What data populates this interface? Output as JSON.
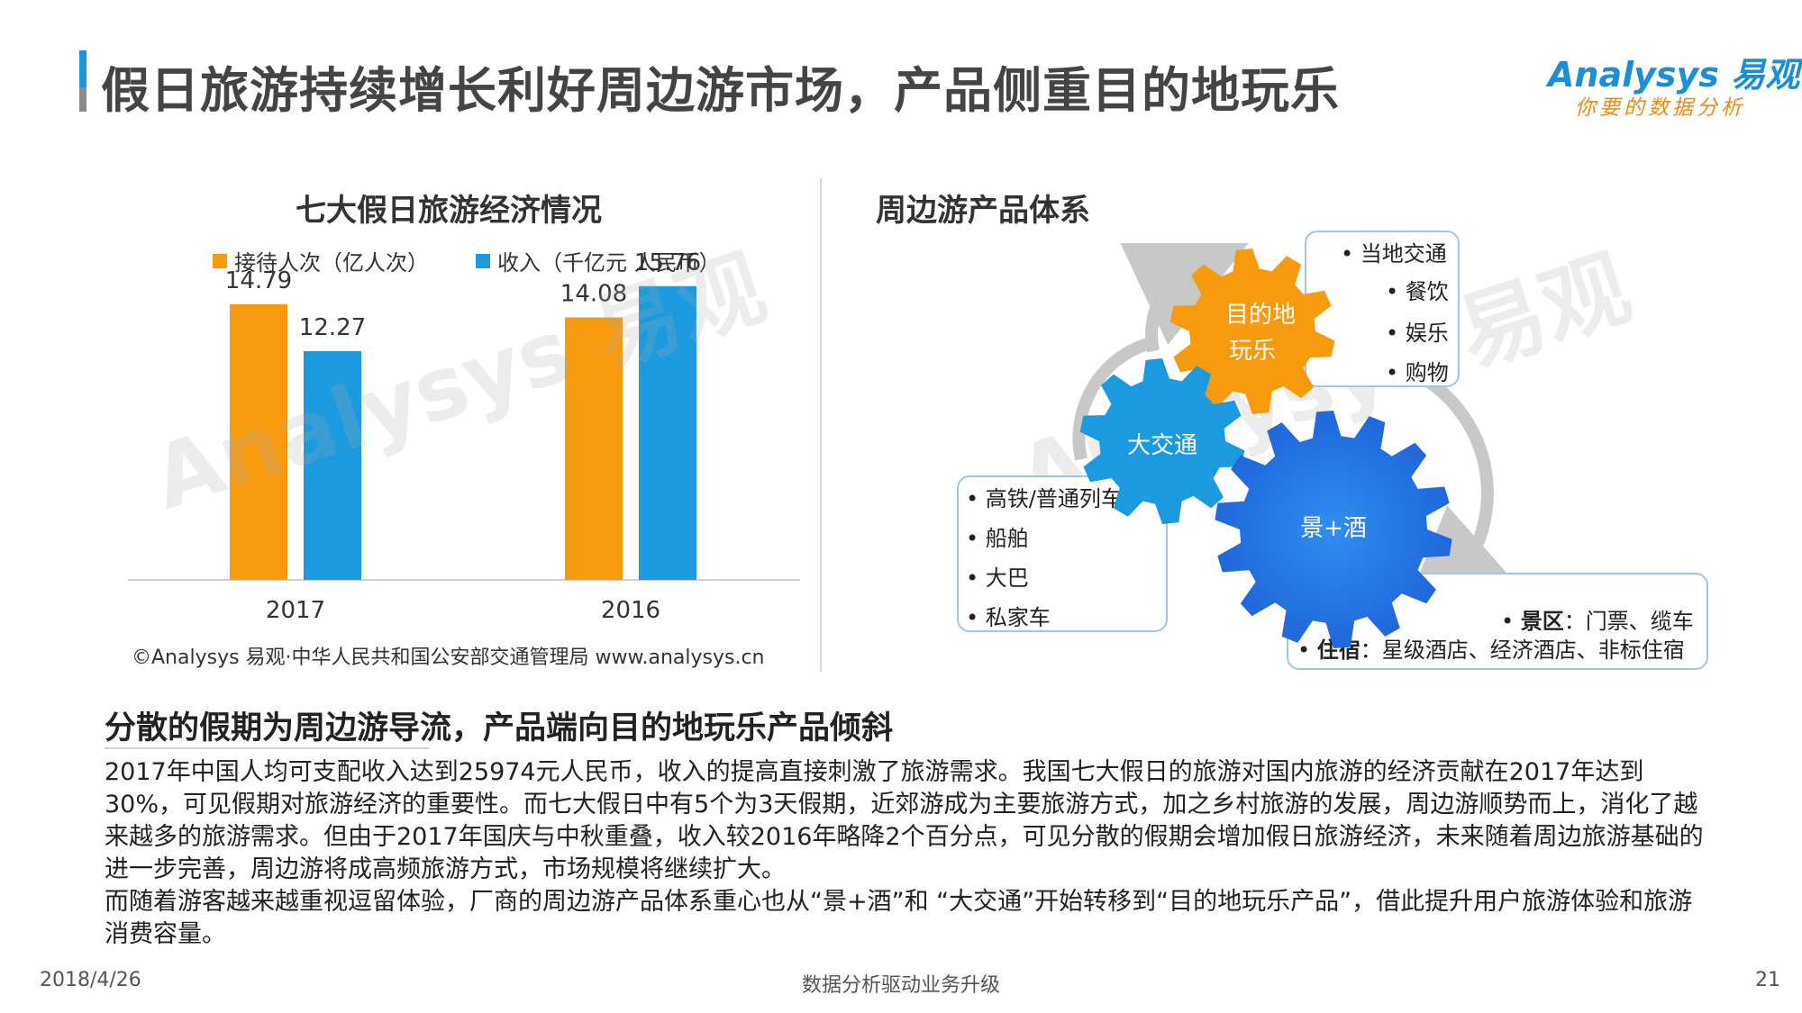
{
  "header": {
    "title": "假日旅游持续增长利好周边游市场，产品侧重目的地玩乐",
    "logo_en": "Analysys 易观",
    "logo_sub": "你要的数据分析"
  },
  "chart_title": "七大假日旅游经济情况",
  "chart_data": {
    "type": "bar",
    "categories": [
      "2017",
      "2016"
    ],
    "series": [
      {
        "name": "接待人次（亿人次）",
        "color": "#f79a0e",
        "values": [
          14.79,
          14.08
        ]
      },
      {
        "name": "收入（千亿元 人民币）",
        "color": "#1b9ae0",
        "values": [
          12.27,
          15.76
        ]
      }
    ],
    "ylim": [
      0,
      20
    ],
    "grid": false,
    "legend": "top"
  },
  "chart_source": "©Analysys 易观·中华人民共和国公安部交通管理局    www.analysys.cn",
  "diagram": {
    "title": "周边游产品体系",
    "gear_orange": "目的地\n玩乐",
    "gear_orange_line1": "目的地",
    "gear_orange_line2": "玩乐",
    "gear_cyan": "大交通",
    "gear_blue": "景+酒",
    "orange_items": [
      "• 当地交通",
      "• 餐饮",
      "• 娱乐",
      "• 购物"
    ],
    "transport_items": [
      "• 高铁/普通列车",
      "• 船舶",
      "• 大巴",
      "• 私家车"
    ],
    "scenic": {
      "bullet": "•",
      "label1": "景区",
      "text1": "：门票、缆车",
      "label2": "住宿",
      "text2": "：星级酒店、经济酒店、非标住宿"
    },
    "colors": {
      "orange": "#f79a0e",
      "cyan": "#1b9ae0",
      "blue": "#1c5fd6"
    }
  },
  "summary": {
    "heading": "分散的假期为周边游导流，产品端向目的地玩乐产品倾斜",
    "paragraph1": "2017年中国人均可支配收入达到25974元人民币，收入的提高直接刺激了旅游需求。我国七大假日的旅游对国内旅游的经济贡献在2017年达到30%，可见假期对旅游经济的重要性。而七大假日中有5个为3天假期，近郊游成为主要旅游方式，加之乡村旅游的发展，周边游顺势而上，消化了越来越多的旅游需求。但由于2017年国庆与中秋重叠，收入较2016年略降2个百分点，可见分散的假期会增加假日旅游经济，未来随着周边旅游基础的进一步完善，周边游将成高频旅游方式，市场规模将继续扩大。",
    "paragraph2": "而随着游客越来越重视逗留体验，厂商的周边游产品体系重心也从“景+酒”和 “大交通”开始转移到“目的地玩乐产品”，借此提升用户旅游体验和旅游消费容量。"
  },
  "footer": {
    "date": "2018/4/26",
    "center": "数据分析驱动业务升级",
    "page": "21"
  }
}
